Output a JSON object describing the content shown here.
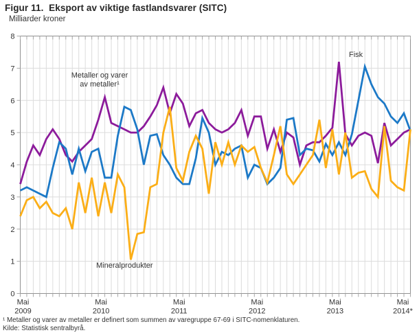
{
  "title": "Figur 11.  Eksport av viktige fastlandsvarer (SITC)",
  "subtitle": "Milliarder kroner",
  "footnotes": [
    "¹ Metaller og varer av metaller er definert som summen av varegruppe 67-69 i SITC-nomenklaturen.",
    "Kilde: Statistisk sentralbyrå."
  ],
  "colors": {
    "metaller": "#8C1B9B",
    "fisk": "#1C79C7",
    "mineral": "#FBAE17",
    "grid": "#DCDCDC",
    "frame": "#909090",
    "tick": "#A8A8A8",
    "text": "#333333"
  },
  "chart_data": {
    "type": "line",
    "title": "Eksport av viktige fastlandsvarer (SITC)",
    "ylabel": "Milliarder kroner",
    "ylim": [
      0,
      8
    ],
    "yticks": [
      0,
      1,
      2,
      3,
      4,
      5,
      6,
      7,
      8
    ],
    "grid": true,
    "x_unit": "month",
    "x_months_total": 61,
    "x_range": [
      "Mai 2009",
      "Mai 2014*"
    ],
    "x_tick_months": [
      0,
      12,
      24,
      36,
      48,
      60
    ],
    "x_tick_labels": [
      [
        "Mai",
        "2009"
      ],
      [
        "Mai",
        "2010"
      ],
      [
        "Mai",
        "2011"
      ],
      [
        "Mai",
        "2012"
      ],
      [
        "Mai",
        "2013"
      ],
      [
        "Mai",
        "2014*"
      ]
    ],
    "series": [
      {
        "name": "Metaller og varer av metaller",
        "label_line1": "Metaller og varer",
        "label_line2": "av metaller¹",
        "color_key": "metaller",
        "values": [
          3.4,
          4.1,
          4.6,
          4.3,
          4.8,
          5.1,
          4.8,
          4.3,
          4.1,
          4.4,
          4.6,
          4.8,
          5.4,
          6.1,
          5.3,
          5.2,
          5.1,
          5.0,
          5.0,
          5.2,
          5.5,
          5.85,
          6.4,
          5.6,
          6.2,
          5.9,
          5.2,
          5.6,
          5.7,
          5.3,
          5.1,
          5.0,
          5.1,
          5.3,
          5.7,
          4.9,
          5.5,
          5.5,
          4.5,
          5.1,
          4.4,
          5.0,
          4.85,
          4.0,
          4.6,
          4.7,
          4.7,
          4.9,
          5.15,
          7.2,
          4.95,
          4.6,
          4.9,
          5.0,
          4.9,
          4.05,
          5.3,
          4.6,
          4.8,
          5.0,
          5.1
        ]
      },
      {
        "name": "Fisk",
        "label_line1": "Fisk",
        "label_line2": "",
        "color_key": "fisk",
        "values": [
          3.2,
          3.3,
          3.2,
          3.1,
          3.0,
          3.9,
          4.7,
          4.5,
          3.7,
          4.5,
          3.8,
          4.4,
          4.5,
          3.6,
          3.6,
          4.9,
          5.8,
          5.7,
          5.1,
          4.0,
          4.9,
          4.95,
          4.3,
          4.0,
          3.6,
          3.4,
          3.4,
          4.2,
          5.45,
          5.0,
          4.0,
          4.4,
          4.3,
          4.5,
          4.6,
          3.6,
          4.0,
          3.9,
          3.4,
          3.6,
          3.9,
          5.4,
          5.45,
          4.3,
          4.5,
          4.45,
          4.1,
          4.65,
          4.3,
          4.7,
          4.3,
          4.95,
          6.0,
          7.05,
          6.5,
          6.1,
          5.9,
          5.5,
          5.3,
          5.6,
          5.05
        ]
      },
      {
        "name": "Mineralprodukter",
        "label_line1": "Mineralprodukter",
        "label_line2": "",
        "color_key": "mineral",
        "values": [
          2.4,
          2.9,
          3.0,
          2.65,
          2.85,
          2.5,
          2.4,
          2.65,
          2.0,
          3.45,
          2.5,
          3.6,
          2.4,
          3.45,
          2.5,
          3.7,
          3.3,
          1.05,
          1.85,
          1.9,
          3.3,
          3.4,
          5.0,
          5.8,
          3.9,
          3.5,
          4.4,
          4.9,
          4.5,
          3.1,
          4.7,
          4.0,
          4.7,
          4.0,
          4.6,
          4.4,
          4.55,
          3.9,
          3.45,
          4.3,
          5.2,
          3.7,
          3.4,
          3.7,
          4.0,
          4.3,
          5.4,
          3.9,
          5.1,
          3.7,
          5.0,
          3.6,
          3.75,
          3.8,
          3.25,
          3.0,
          5.2,
          3.5,
          3.3,
          3.2,
          5.1
        ]
      }
    ]
  }
}
